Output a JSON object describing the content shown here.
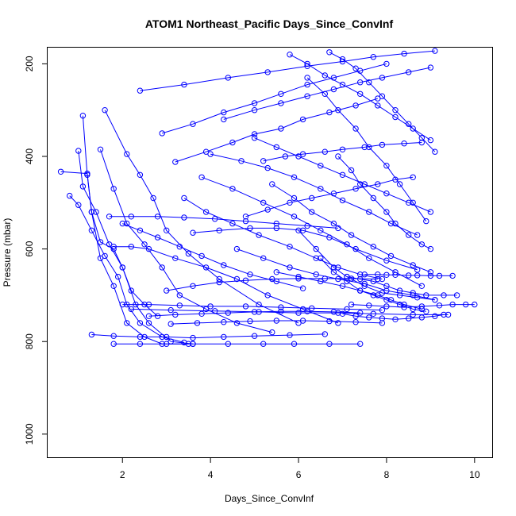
{
  "chart_data": {
    "type": "line",
    "title": "ATOM1 Northeast_Pacific Days_Since_ConvInf",
    "xlabel": "Days_Since_ConvInf",
    "ylabel": "Pressure (mbar)",
    "xlim": [
      0.3,
      10.4
    ],
    "ylim": [
      1050,
      165
    ],
    "y_reversed": true,
    "x_ticks": [
      2,
      4,
      6,
      8,
      10
    ],
    "y_ticks": [
      200,
      400,
      600,
      800,
      1000
    ],
    "x_tick_labels": [
      "2",
      "4",
      "6",
      "8",
      "10"
    ],
    "y_tick_labels": [
      "200",
      "400",
      "600",
      "800",
      "1000"
    ],
    "grid": false,
    "legend": "none",
    "color": "#0000ff",
    "marker": "open-circle",
    "series": [
      {
        "x": [
          0.6,
          1.2,
          1.3,
          1.5,
          1.8,
          2.0,
          2.2,
          2.5,
          2.8
        ],
        "y": [
          433,
          437,
          520,
          585,
          600,
          640,
          690,
          720,
          745
        ]
      },
      {
        "x": [
          0.8,
          1.0,
          1.3,
          1.6,
          1.9,
          2.1,
          2.4,
          2.9,
          3.4
        ],
        "y": [
          485,
          505,
          560,
          615,
          660,
          720,
          760,
          790,
          802
        ]
      },
      {
        "x": [
          1.0,
          1.1,
          1.4,
          1.7,
          2.0,
          2.3,
          2.6,
          3.1,
          3.6
        ],
        "y": [
          388,
          465,
          520,
          590,
          640,
          720,
          760,
          800,
          805
        ]
      },
      {
        "x": [
          1.1,
          1.2,
          1.3,
          1.5,
          1.8,
          2.1,
          2.5,
          2.9,
          3.5
        ],
        "y": [
          312,
          440,
          520,
          620,
          680,
          760,
          790,
          805,
          805
        ]
      },
      {
        "x": [
          1.6,
          2.1,
          2.4,
          2.7,
          3.0,
          3.5,
          4.2,
          5.1,
          6.0
        ],
        "y": [
          300,
          395,
          440,
          490,
          560,
          610,
          665,
          720,
          760
        ]
      },
      {
        "x": [
          1.5,
          1.8,
          2.1,
          2.5,
          2.9,
          3.3,
          3.9,
          4.6,
          5.4
        ],
        "y": [
          385,
          470,
          545,
          590,
          640,
          700,
          730,
          760,
          780
        ]
      },
      {
        "x": [
          1.8,
          2.2,
          2.6,
          3.2,
          3.9,
          4.6,
          5.3,
          6.1,
          6.9
        ],
        "y": [
          595,
          595,
          600,
          620,
          640,
          665,
          700,
          730,
          760
        ]
      },
      {
        "x": [
          2.0,
          2.6,
          3.3,
          4.0,
          4.8,
          5.6,
          6.3,
          7.1,
          7.9
        ],
        "y": [
          720,
          720,
          722,
          724,
          724,
          726,
          728,
          730,
          732
        ]
      },
      {
        "x": [
          2.2,
          3.1,
          4.1,
          5.1,
          6.0,
          6.9,
          7.7,
          8.6,
          9.4
        ],
        "y": [
          730,
          732,
          734,
          736,
          738,
          738,
          740,
          742,
          742
        ]
      },
      {
        "x": [
          1.3,
          1.8,
          2.4,
          3.0,
          3.6,
          4.3,
          5.0,
          5.8,
          6.6
        ],
        "y": [
          785,
          788,
          790,
          790,
          792,
          790,
          788,
          786,
          784
        ]
      },
      {
        "x": [
          1.8,
          2.4,
          3.0,
          3.6,
          4.4,
          5.2,
          5.9,
          6.7,
          7.4
        ],
        "y": [
          805,
          805,
          805,
          805,
          805,
          805,
          805,
          805,
          805
        ]
      },
      {
        "x": [
          2.4,
          3.4,
          4.4,
          5.3,
          6.2,
          7.0,
          7.7,
          8.4,
          9.1
        ],
        "y": [
          258,
          245,
          230,
          218,
          205,
          195,
          185,
          178,
          172
        ]
      },
      {
        "x": [
          2.9,
          3.6,
          4.3,
          5.0,
          5.6,
          6.2,
          6.8,
          7.4,
          8.0
        ],
        "y": [
          350,
          330,
          305,
          285,
          265,
          245,
          230,
          215,
          200
        ]
      },
      {
        "x": [
          3.2,
          3.9,
          4.5,
          5.0,
          5.6,
          6.1,
          6.7,
          7.3,
          7.8
        ],
        "y": [
          412,
          390,
          370,
          352,
          340,
          320,
          305,
          290,
          275
        ]
      },
      {
        "x": [
          3.4,
          3.9,
          4.5,
          5.1,
          5.8,
          6.4,
          6.9,
          7.4,
          7.9
        ],
        "y": [
          490,
          520,
          545,
          570,
          595,
          620,
          640,
          655,
          665
        ]
      },
      {
        "x": [
          3.6,
          4.2,
          4.9,
          5.5,
          6.1,
          6.7,
          7.3,
          8.0,
          8.7
        ],
        "y": [
          565,
          560,
          555,
          555,
          560,
          575,
          600,
          625,
          645
        ]
      },
      {
        "x": [
          3.8,
          4.5,
          5.2,
          5.9,
          6.5,
          7.1,
          7.6,
          8.2,
          8.8
        ],
        "y": [
          445,
          470,
          500,
          530,
          560,
          590,
          620,
          650,
          680
        ]
      },
      {
        "x": [
          4.0,
          4.7,
          5.3,
          5.9,
          6.5,
          7.0,
          7.6,
          8.1,
          8.7
        ],
        "y": [
          395,
          410,
          425,
          445,
          470,
          495,
          520,
          545,
          570
        ]
      },
      {
        "x": [
          4.3,
          5.0,
          5.6,
          6.2,
          6.8,
          7.4,
          7.9,
          8.5,
          9.0
        ],
        "y": [
          320,
          300,
          285,
          270,
          255,
          240,
          230,
          218,
          208
        ]
      },
      {
        "x": [
          4.6,
          5.2,
          5.8,
          6.4,
          6.9,
          7.5,
          8.0,
          8.6,
          9.1
        ],
        "y": [
          600,
          620,
          640,
          655,
          665,
          675,
          690,
          700,
          710
        ]
      },
      {
        "x": [
          5.0,
          5.5,
          6.0,
          6.5,
          7.0,
          7.5,
          8.0,
          8.5,
          9.0
        ],
        "y": [
          360,
          380,
          400,
          420,
          440,
          460,
          480,
          500,
          520
        ]
      },
      {
        "x": [
          5.4,
          5.9,
          6.3,
          6.8,
          7.2,
          7.7,
          8.1,
          8.6,
          9.0
        ],
        "y": [
          460,
          490,
          520,
          545,
          570,
          595,
          615,
          635,
          650
        ]
      },
      {
        "x": [
          5.8,
          6.2,
          6.6,
          7.0,
          7.4,
          7.8,
          8.2,
          8.6,
          9.0
        ],
        "y": [
          180,
          200,
          225,
          245,
          265,
          290,
          315,
          340,
          365
        ]
      },
      {
        "x": [
          6.0,
          6.4,
          6.8,
          7.1,
          7.5,
          7.9,
          8.3,
          8.7,
          9.1
        ],
        "y": [
          560,
          600,
          640,
          660,
          680,
          695,
          700,
          705,
          710
        ]
      },
      {
        "x": [
          6.2,
          6.6,
          6.9,
          7.3,
          7.6,
          8.0,
          8.3,
          8.6,
          8.9
        ],
        "y": [
          230,
          265,
          300,
          340,
          380,
          420,
          460,
          500,
          540
        ]
      },
      {
        "x": [
          6.5,
          6.8,
          7.1,
          7.4,
          7.7,
          8.0,
          8.3,
          8.6,
          8.9
        ],
        "y": [
          620,
          650,
          670,
          690,
          700,
          710,
          720,
          730,
          735
        ]
      },
      {
        "x": [
          6.7,
          7.0,
          7.3,
          7.6,
          7.9,
          8.2,
          8.5,
          8.8,
          9.1
        ],
        "y": [
          175,
          190,
          210,
          240,
          270,
          300,
          330,
          360,
          390
        ]
      },
      {
        "x": [
          6.9,
          7.2,
          7.4,
          7.7,
          8.0,
          8.2,
          8.5,
          8.8,
          9.0
        ],
        "y": [
          400,
          430,
          460,
          490,
          520,
          545,
          570,
          590,
          600
        ]
      },
      {
        "x": [
          7.1,
          7.4,
          7.7,
          8.0,
          8.3,
          8.6,
          8.9,
          9.3,
          9.6
        ],
        "y": [
          660,
          665,
          670,
          680,
          690,
          695,
          700,
          700,
          700
        ]
      },
      {
        "x": [
          7.2,
          7.6,
          8.0,
          8.4,
          8.8,
          9.2,
          9.5,
          9.8,
          10.0
        ],
        "y": [
          720,
          722,
          724,
          726,
          724,
          722,
          720,
          720,
          720
        ]
      },
      {
        "x": [
          7.0,
          7.3,
          7.6,
          7.9,
          8.2,
          8.5,
          8.8,
          9.1,
          9.3
        ],
        "y": [
          740,
          745,
          748,
          750,
          752,
          750,
          748,
          745,
          742
        ]
      },
      {
        "x": [
          7.5,
          7.8,
          8.0,
          8.2,
          8.5,
          8.7,
          9.0,
          9.2,
          9.5
        ],
        "y": [
          655,
          655,
          656,
          656,
          657,
          657,
          658,
          658,
          658
        ]
      },
      {
        "x": [
          5.5,
          6.0,
          6.5,
          7.0,
          7.4,
          7.8,
          8.1,
          8.4,
          8.8
        ],
        "y": [
          650,
          660,
          670,
          680,
          690,
          700,
          710,
          720,
          730
        ]
      },
      {
        "x": [
          3.0,
          3.6,
          4.2,
          4.8,
          5.4,
          6.0,
          6.6,
          7.2,
          7.8
        ],
        "y": [
          690,
          680,
          672,
          668,
          665,
          664,
          664,
          664,
          665
        ]
      },
      {
        "x": [
          2.6,
          3.2,
          3.8,
          4.4,
          5.0,
          5.6,
          6.2,
          6.8,
          7.4
        ],
        "y": [
          745,
          742,
          740,
          738,
          736,
          735,
          735,
          736,
          738
        ]
      },
      {
        "x": [
          3.1,
          3.7,
          4.3,
          4.9,
          5.5,
          6.1,
          6.7,
          7.3,
          7.9
        ],
        "y": [
          762,
          760,
          758,
          756,
          755,
          755,
          756,
          758,
          760
        ]
      },
      {
        "x": [
          2.0,
          2.4,
          2.8,
          3.3,
          3.8,
          4.3,
          4.9,
          5.5,
          6.1
        ],
        "y": [
          545,
          560,
          575,
          595,
          615,
          635,
          655,
          670,
          685
        ]
      },
      {
        "x": [
          1.7,
          2.2,
          2.8,
          3.4,
          4.1,
          4.8,
          5.5,
          6.2,
          6.9
        ],
        "y": [
          530,
          530,
          530,
          532,
          535,
          540,
          545,
          550,
          555
        ]
      },
      {
        "x": [
          4.8,
          5.3,
          5.8,
          6.3,
          6.8,
          7.3,
          7.8,
          8.2,
          8.6
        ],
        "y": [
          530,
          515,
          500,
          490,
          480,
          470,
          460,
          450,
          445
        ]
      },
      {
        "x": [
          5.2,
          5.7,
          6.1,
          6.6,
          7.0,
          7.5,
          7.9,
          8.4,
          8.8
        ],
        "y": [
          410,
          400,
          395,
          390,
          385,
          380,
          375,
          372,
          370
        ]
      }
    ]
  }
}
